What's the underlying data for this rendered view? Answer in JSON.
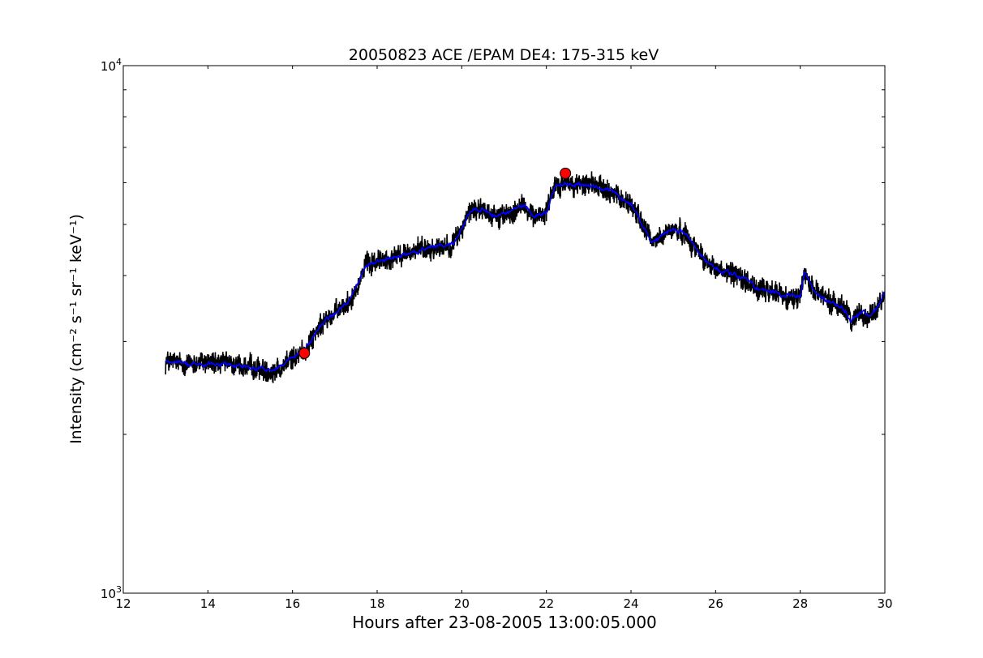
{
  "chart_data": {
    "type": "line",
    "title": "20050823 ACE /EPAM DE4: 175-315 keV",
    "xlabel": "Hours after 23-08-2005 13:00:05.000",
    "ylabel": "Intensity (cm⁻² s⁻¹ sr⁻¹ keV⁻¹)",
    "xlim": [
      12,
      30
    ],
    "ylim": [
      1000,
      10000
    ],
    "yscale": "log",
    "grid": false,
    "x_ticks": [
      "12",
      "14",
      "16",
      "18",
      "20",
      "22",
      "24",
      "26",
      "28",
      "30"
    ],
    "y_ticks": [
      {
        "base": "10",
        "exp": "3"
      },
      {
        "base": "10",
        "exp": "4"
      }
    ],
    "series": [
      {
        "color": "#000000",
        "style": "raw-noisy",
        "x": [
          13.0,
          13.5,
          14.0,
          14.5,
          15.0,
          15.5,
          15.8,
          16.0,
          16.3,
          16.5,
          16.8,
          17.0,
          17.3,
          17.5,
          17.7,
          18.0,
          18.5,
          19.0,
          19.5,
          19.8,
          20.0,
          20.2,
          20.5,
          20.8,
          21.0,
          21.3,
          21.5,
          21.7,
          22.0,
          22.2,
          22.4,
          22.7,
          23.0,
          23.5,
          24.0,
          24.3,
          24.5,
          24.8,
          25.0,
          25.3,
          25.5,
          25.8,
          26.0,
          26.5,
          26.8,
          27.0,
          27.5,
          27.8,
          28.0,
          28.1,
          28.3,
          28.6,
          29.0,
          29.2,
          29.5,
          29.6,
          29.8,
          30.0
        ],
        "values": [
          2750,
          2720,
          2740,
          2710,
          2670,
          2640,
          2720,
          2780,
          2900,
          3080,
          3300,
          3380,
          3550,
          3800,
          4150,
          4250,
          4350,
          4480,
          4550,
          4600,
          4900,
          5300,
          5350,
          5180,
          5200,
          5350,
          5400,
          5150,
          5300,
          5900,
          5950,
          5950,
          5950,
          5800,
          5450,
          4950,
          4600,
          4800,
          4900,
          4800,
          4550,
          4250,
          4100,
          4000,
          3900,
          3750,
          3700,
          3620,
          3650,
          4080,
          3800,
          3580,
          3500,
          3300,
          3420,
          3350,
          3480,
          3700
        ]
      },
      {
        "color": "#0000ff",
        "style": "smoothed",
        "x": [
          13.0,
          13.5,
          14.0,
          14.5,
          15.0,
          15.5,
          15.8,
          16.0,
          16.3,
          16.5,
          16.8,
          17.0,
          17.3,
          17.5,
          17.7,
          18.0,
          18.5,
          19.0,
          19.5,
          19.8,
          20.0,
          20.2,
          20.5,
          20.8,
          21.0,
          21.3,
          21.5,
          21.7,
          22.0,
          22.2,
          22.4,
          22.7,
          23.0,
          23.5,
          24.0,
          24.3,
          24.5,
          24.8,
          25.0,
          25.3,
          25.5,
          25.8,
          26.0,
          26.5,
          26.8,
          27.0,
          27.5,
          27.8,
          28.0,
          28.1,
          28.3,
          28.6,
          29.0,
          29.2,
          29.5,
          29.6,
          29.8,
          30.0
        ],
        "values": [
          2750,
          2720,
          2740,
          2710,
          2670,
          2640,
          2720,
          2780,
          2900,
          3080,
          3300,
          3380,
          3550,
          3800,
          4150,
          4250,
          4350,
          4480,
          4550,
          4600,
          4900,
          5300,
          5350,
          5180,
          5200,
          5350,
          5400,
          5150,
          5300,
          5900,
          5950,
          5950,
          5950,
          5800,
          5450,
          4950,
          4600,
          4800,
          4900,
          4800,
          4550,
          4250,
          4100,
          4000,
          3900,
          3750,
          3700,
          3620,
          3650,
          4080,
          3800,
          3580,
          3500,
          3300,
          3420,
          3350,
          3480,
          3700
        ]
      }
    ],
    "markers": [
      {
        "x": 16.28,
        "y": 2850,
        "color": "#ff0000"
      },
      {
        "x": 22.45,
        "y": 6250,
        "color": "#ff0000"
      }
    ]
  }
}
